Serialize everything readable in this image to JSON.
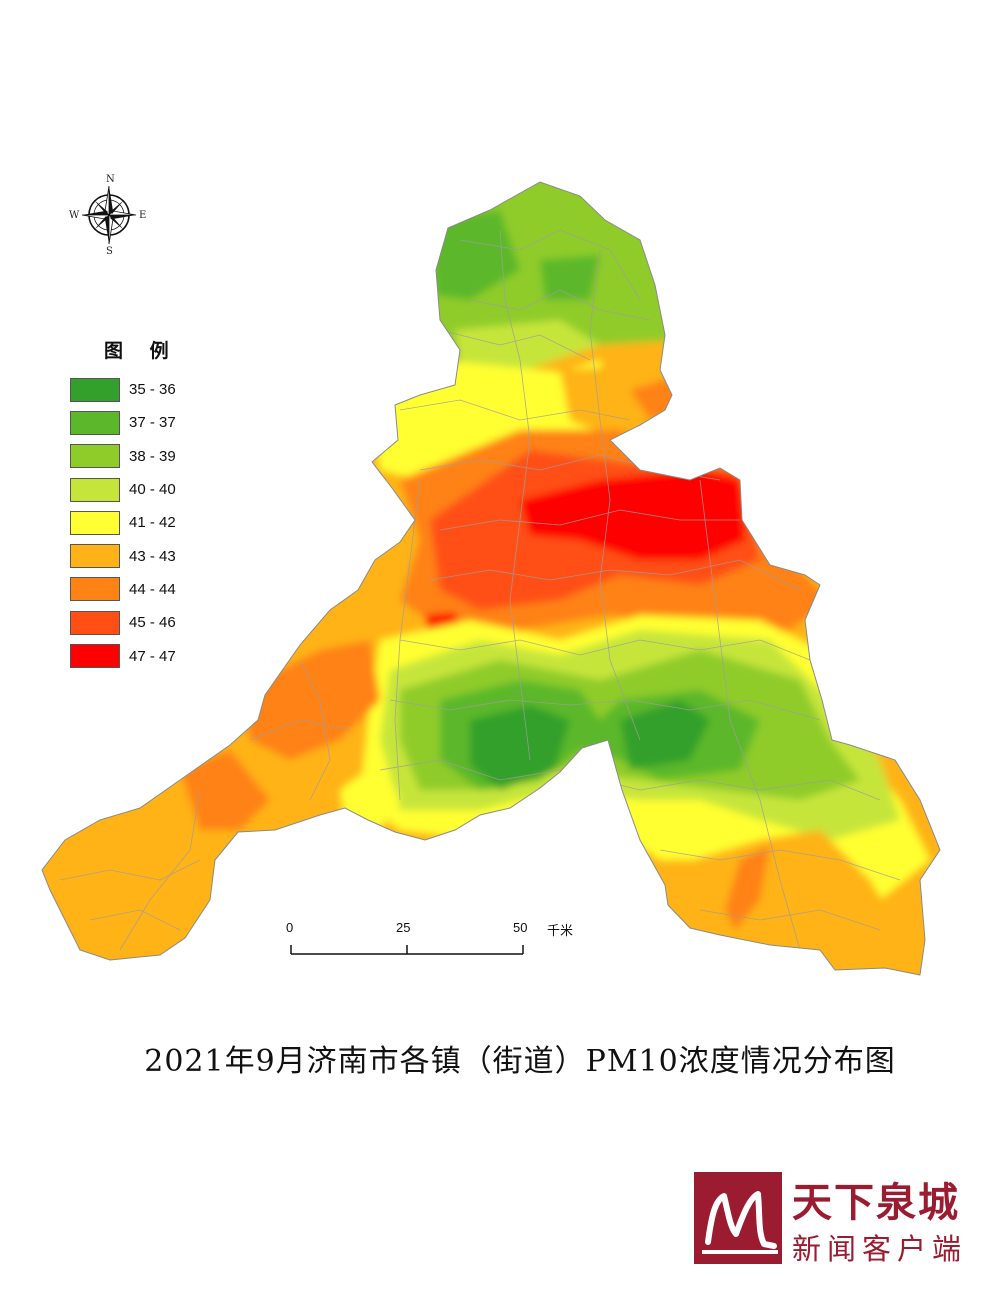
{
  "compass": {
    "n": "N",
    "s": "S",
    "w": "W",
    "e": "E",
    "icon": "compass-rose-icon"
  },
  "legend": {
    "title": "图 例",
    "items": [
      {
        "label": "35 - 36",
        "color": "#33a02c"
      },
      {
        "label": "37 - 37",
        "color": "#5cb82a"
      },
      {
        "label": "38 - 39",
        "color": "#8fcc2a"
      },
      {
        "label": "40 - 40",
        "color": "#c6e53a"
      },
      {
        "label": "41 - 42",
        "color": "#ffff33"
      },
      {
        "label": "43 - 43",
        "color": "#ffb319"
      },
      {
        "label": "44 - 44",
        "color": "#ff8214"
      },
      {
        "label": "45 - 46",
        "color": "#ff4f14"
      },
      {
        "label": "47 - 47",
        "color": "#ff0000"
      }
    ]
  },
  "scalebar": {
    "ticks": [
      "0",
      "25",
      "50"
    ],
    "unit": "千米"
  },
  "caption": "2021年9月济南市各镇（街道）PM10浓度情况分布图",
  "brand": {
    "name": "天下泉城",
    "sub": "新闻客户端",
    "logo_icon": "tianxiaquancheng-logo-icon",
    "accent": "#9b1b30"
  }
}
